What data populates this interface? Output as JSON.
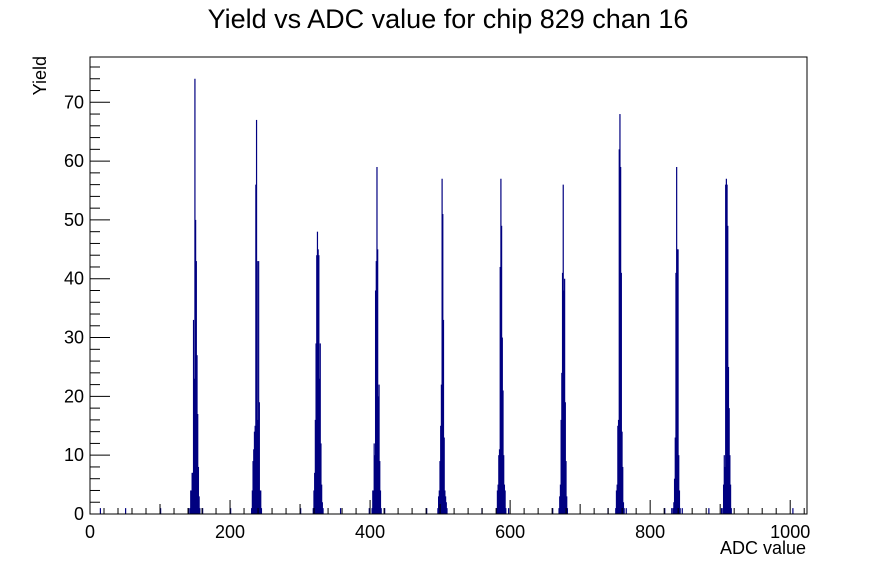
{
  "chart_data": {
    "type": "histogram",
    "title": "Yield vs ADC value for chip 829 chan 16",
    "xlabel": "ADC value",
    "ylabel": "Yield",
    "xlim": [
      0,
      1024
    ],
    "ylim": [
      0,
      77.7
    ],
    "x_ticks": [
      "0",
      "200",
      "400",
      "600",
      "800",
      "1000"
    ],
    "y_ticks": [
      "0",
      "10",
      "20",
      "30",
      "40",
      "50",
      "60",
      "70"
    ],
    "grid": false,
    "legend": "none",
    "line_color": "#000080",
    "bin_width": 1,
    "series": [
      {
        "bins": [
          [
            14,
            1
          ],
          [
            50,
            1
          ],
          [
            100,
            1
          ],
          [
            140,
            1
          ],
          [
            142,
            1
          ],
          [
            143,
            4
          ],
          [
            144,
            4
          ],
          [
            145,
            7
          ],
          [
            146,
            7
          ],
          [
            147,
            33
          ],
          [
            148,
            23
          ],
          [
            149,
            74
          ],
          [
            150,
            50
          ],
          [
            151,
            43
          ],
          [
            152,
            27
          ],
          [
            153,
            17
          ],
          [
            154,
            8
          ],
          [
            155,
            3
          ],
          [
            156,
            1
          ],
          [
            160,
            1
          ],
          [
            200,
            1
          ],
          [
            230,
            1
          ],
          [
            231,
            4
          ],
          [
            232,
            9
          ],
          [
            233,
            11
          ],
          [
            234,
            14
          ],
          [
            235,
            15
          ],
          [
            236,
            56
          ],
          [
            237,
            67
          ],
          [
            238,
            43
          ],
          [
            239,
            16
          ],
          [
            240,
            43
          ],
          [
            241,
            19
          ],
          [
            242,
            4
          ],
          [
            243,
            4
          ],
          [
            244,
            1
          ],
          [
            300,
            1
          ],
          [
            318,
            1
          ],
          [
            319,
            4
          ],
          [
            320,
            7
          ],
          [
            321,
            16
          ],
          [
            322,
            29
          ],
          [
            323,
            44
          ],
          [
            324,
            48
          ],
          [
            325,
            45
          ],
          [
            326,
            44
          ],
          [
            327,
            23
          ],
          [
            328,
            29
          ],
          [
            329,
            12
          ],
          [
            330,
            5
          ],
          [
            331,
            2
          ],
          [
            332,
            1
          ],
          [
            357,
            1
          ],
          [
            398,
            1
          ],
          [
            402,
            1
          ],
          [
            403,
            4
          ],
          [
            404,
            4
          ],
          [
            405,
            12
          ],
          [
            406,
            10
          ],
          [
            407,
            38
          ],
          [
            408,
            43
          ],
          [
            409,
            59
          ],
          [
            410,
            45
          ],
          [
            411,
            20
          ],
          [
            412,
            22
          ],
          [
            413,
            9
          ],
          [
            414,
            4
          ],
          [
            415,
            1
          ],
          [
            420,
            1
          ],
          [
            480,
            1
          ],
          [
            496,
            1
          ],
          [
            497,
            3
          ],
          [
            498,
            4
          ],
          [
            499,
            9
          ],
          [
            500,
            15
          ],
          [
            501,
            22
          ],
          [
            502,
            57
          ],
          [
            503,
            51
          ],
          [
            504,
            33
          ],
          [
            505,
            13
          ],
          [
            506,
            4
          ],
          [
            507,
            3
          ],
          [
            508,
            2
          ],
          [
            509,
            1
          ],
          [
            559,
            1
          ],
          [
            580,
            1
          ],
          [
            581,
            4
          ],
          [
            582,
            5
          ],
          [
            583,
            10
          ],
          [
            584,
            11
          ],
          [
            585,
            42
          ],
          [
            586,
            57
          ],
          [
            587,
            49
          ],
          [
            588,
            30
          ],
          [
            589,
            21
          ],
          [
            590,
            10
          ],
          [
            591,
            5
          ],
          [
            592,
            4
          ],
          [
            593,
            1
          ],
          [
            597,
            1
          ],
          [
            660,
            1
          ],
          [
            669,
            1
          ],
          [
            670,
            3
          ],
          [
            671,
            5
          ],
          [
            672,
            16
          ],
          [
            673,
            24
          ],
          [
            674,
            41
          ],
          [
            675,
            56
          ],
          [
            676,
            38
          ],
          [
            677,
            40
          ],
          [
            678,
            19
          ],
          [
            679,
            9
          ],
          [
            680,
            3
          ],
          [
            681,
            1
          ],
          [
            739,
            1
          ],
          [
            750,
            1
          ],
          [
            751,
            4
          ],
          [
            752,
            5
          ],
          [
            753,
            15
          ],
          [
            754,
            16
          ],
          [
            755,
            62
          ],
          [
            756,
            68
          ],
          [
            757,
            59
          ],
          [
            758,
            41
          ],
          [
            759,
            14
          ],
          [
            760,
            8
          ],
          [
            761,
            2
          ],
          [
            762,
            1
          ],
          [
            765,
            1
          ],
          [
            820,
            1
          ],
          [
            830,
            1
          ],
          [
            832,
            1
          ],
          [
            833,
            2
          ],
          [
            834,
            6
          ],
          [
            835,
            13
          ],
          [
            836,
            41
          ],
          [
            837,
            59
          ],
          [
            838,
            45
          ],
          [
            839,
            45
          ],
          [
            840,
            10
          ],
          [
            841,
            4
          ],
          [
            842,
            1
          ],
          [
            845,
            1
          ],
          [
            883,
            1
          ],
          [
            901,
            1
          ],
          [
            903,
            1
          ],
          [
            904,
            5
          ],
          [
            905,
            10
          ],
          [
            906,
            8
          ],
          [
            907,
            56
          ],
          [
            908,
            57
          ],
          [
            909,
            56
          ],
          [
            910,
            49
          ],
          [
            911,
            25
          ],
          [
            912,
            18
          ],
          [
            913,
            10
          ],
          [
            914,
            5
          ],
          [
            915,
            1
          ],
          [
            1003,
            1
          ]
        ]
      }
    ]
  }
}
